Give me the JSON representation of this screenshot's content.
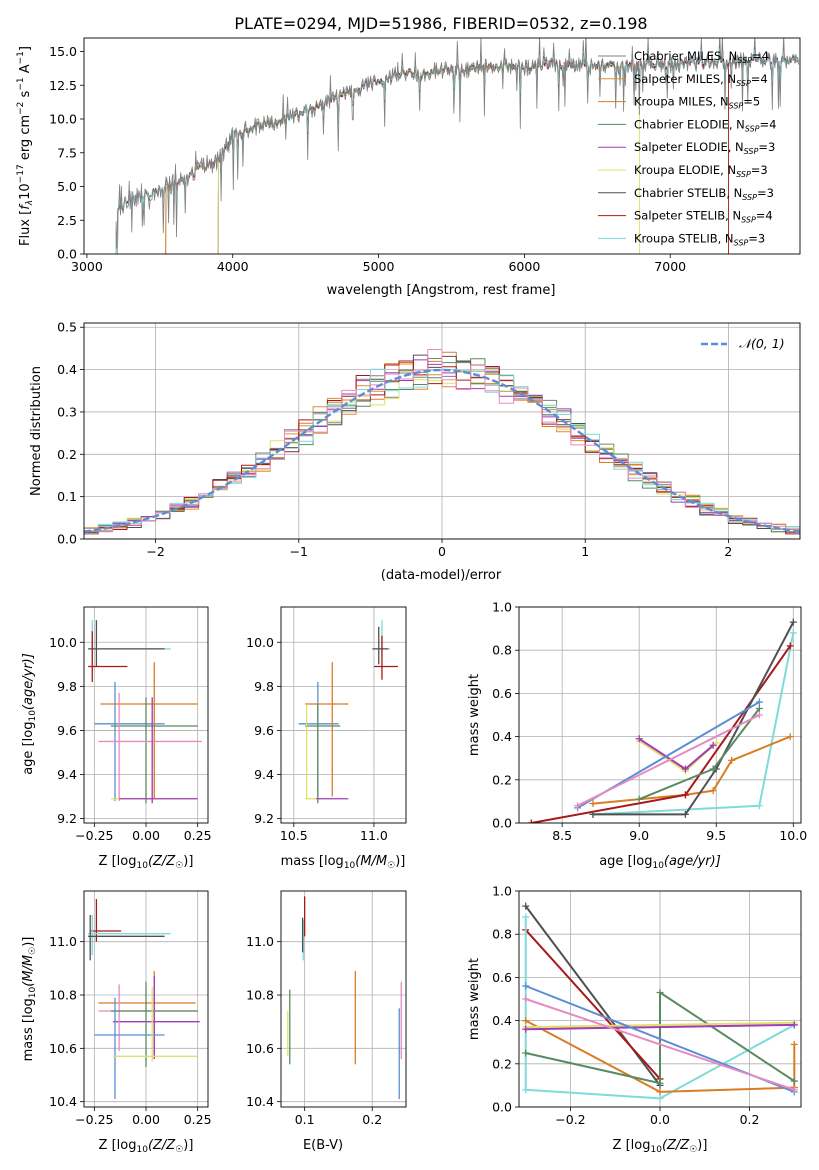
{
  "colors": {
    "Chabrier MILES": "#808080",
    "Salpeter MILES": "#e38b3a",
    "Kroupa MILES": "#d97c26",
    "Chabrier ELODIE": "#5a8a60",
    "Salpeter ELODIE": "#a23bb8",
    "Kroupa ELODIE": "#dfe06a",
    "Chabrier STELIB": "#505050",
    "Salpeter STELIB": "#a81a1a",
    "Kroupa STELIB": "#7fdada",
    "normal": "#5b8ed6",
    "pink": "#e68ac0",
    "grid": "#b0b0b0"
  },
  "chart_data": [
    {
      "id": "spectrum",
      "type": "line",
      "title": "PLATE=0294, MJD=51986, FIBERID=0532, z=0.198",
      "xlabel": "wavelength [Angstrom, rest frame]",
      "ylabel_main": "Flux [",
      "ylabel_f": "f",
      "ylabel_lambda": "λ",
      "ylabel_mid": "10",
      "ylabel_exp1": "−17",
      "ylabel_units": " erg cm",
      "ylabel_exp2": "−2",
      "ylabel_s": " s",
      "ylabel_exp3": "−1",
      "ylabel_A": " A",
      "ylabel_exp4": "−1",
      "ylabel_end": "]",
      "xlim": [
        2980,
        7890
      ],
      "ylim": [
        0,
        16
      ],
      "xticks": [
        3000,
        4000,
        5000,
        6000,
        7000
      ],
      "yticks": [
        "0.0",
        "2.5",
        "5.0",
        "7.5",
        "10.0",
        "12.5",
        "15.0"
      ],
      "ytick_values": [
        0,
        2.5,
        5,
        7.5,
        10,
        12.5,
        15
      ],
      "legend": [
        {
          "name": "Chabrier MILES",
          "nssp": "4"
        },
        {
          "name": "Salpeter MILES",
          "nssp": "4"
        },
        {
          "name": "Kroupa MILES",
          "nssp": "5"
        },
        {
          "name": "Chabrier ELODIE",
          "nssp": "4"
        },
        {
          "name": "Salpeter ELODIE",
          "nssp": "3"
        },
        {
          "name": "Kroupa ELODIE",
          "nssp": "3"
        },
        {
          "name": "Chabrier STELIB",
          "nssp": "3"
        },
        {
          "name": "Salpeter STELIB",
          "nssp": "4"
        },
        {
          "name": "Kroupa STELIB",
          "nssp": "3"
        }
      ],
      "legend_label_sub": "SSP",
      "legend_label_N": "N",
      "continuum_x": [
        3200,
        3300,
        3400,
        3500,
        3600,
        3700,
        3800,
        3900,
        4000,
        4100,
        4200,
        4300,
        4400,
        4500,
        4600,
        4700,
        4800,
        4900,
        5000,
        5100,
        5200,
        5300,
        5400,
        5500,
        5600,
        5700,
        5800,
        5900,
        6000,
        6200,
        6400,
        6600,
        6800,
        7000,
        7200,
        7400,
        7500
      ],
      "continuum_y": [
        3.2,
        4.1,
        4.6,
        4.8,
        5.3,
        5.8,
        6.4,
        6.9,
        8.7,
        9.2,
        9.6,
        9.8,
        10.1,
        10.5,
        11.0,
        11.5,
        11.9,
        12.4,
        12.8,
        13.2,
        13.5,
        13.3,
        13.6,
        13.7,
        13.6,
        13.8,
        13.8,
        13.9,
        13.8,
        14.0,
        13.9,
        13.9,
        14.1,
        14.0,
        14.2,
        14.3,
        14.3
      ],
      "model_starts": [
        {
          "name": "Chabrier MILES",
          "start": 3540
        },
        {
          "name": "Salpeter MILES",
          "start": 3540
        },
        {
          "name": "Kroupa MILES",
          "start": 3540
        },
        {
          "name": "Chabrier ELODIE",
          "start": 3900
        },
        {
          "name": "Salpeter ELODIE",
          "start": 3900
        },
        {
          "name": "Kroupa ELODIE",
          "start": 3900
        },
        {
          "name": "Chabrier STELIB",
          "start": 3210
        },
        {
          "name": "Salpeter STELIB",
          "start": 3210
        },
        {
          "name": "Kroupa STELIB",
          "start": 3210
        }
      ],
      "model_ends": [
        {
          "name": "Kroupa ELODIE",
          "end": 6790
        },
        {
          "name": "Salpeter STELIB",
          "end": 7400
        }
      ]
    },
    {
      "id": "hist",
      "type": "line",
      "xlabel": "(data-model)/error",
      "ylabel": "Normed distribution",
      "xlim": [
        -2.5,
        2.5
      ],
      "ylim": [
        0,
        0.51
      ],
      "xticks": [
        "−2",
        "−1",
        "0",
        "1",
        "2"
      ],
      "xtick_values": [
        -2,
        -1,
        0,
        1,
        2
      ],
      "yticks": [
        "0.0",
        "0.1",
        "0.2",
        "0.3",
        "0.4",
        "0.5"
      ],
      "ytick_values": [
        0,
        0.1,
        0.2,
        0.3,
        0.4,
        0.5
      ],
      "legend_label": "𝒩(0, 1)",
      "bin_edges_start": -2.5,
      "bin_width": 0.1,
      "normal_curve": {
        "mu": 0,
        "sigma": 1
      }
    },
    {
      "id": "age_vs_Z",
      "type": "scatter",
      "xlabel": "Z [log",
      "xlabel_sub": "10",
      "xlabel_rest": "(Z/Z",
      "xlabel_sun": "☉",
      "xlabel_end": ")]",
      "ylabel": "age  [log",
      "ylabel_sub": "10",
      "ylabel_rest": "(age/yr)]",
      "xlim": [
        -0.3,
        0.3
      ],
      "ylim": [
        9.18,
        10.16
      ],
      "xticks": [
        "−0.25",
        "0.00",
        "0.25"
      ],
      "xtick_values": [
        -0.25,
        0,
        0.25
      ],
      "yticks": [
        "9.2",
        "9.4",
        "9.6",
        "9.8",
        "10.0"
      ],
      "ytick_values": [
        9.2,
        9.4,
        9.6,
        9.8,
        10.0
      ]
    },
    {
      "id": "age_vs_mass",
      "type": "scatter",
      "xlabel": "mass [log",
      "xlabel_sub": "10",
      "xlabel_rest": "(M/M",
      "xlabel_sun": "☉",
      "xlabel_end": ")]",
      "xlim": [
        10.42,
        11.2
      ],
      "ylim": [
        9.18,
        10.16
      ],
      "xticks": [
        "10.5",
        "11.0"
      ],
      "xtick_values": [
        10.5,
        11.0
      ],
      "yticks": [
        "9.2",
        "9.4",
        "9.6",
        "9.8",
        "10.0"
      ],
      "ytick_values": [
        9.2,
        9.4,
        9.6,
        9.8,
        10.0
      ]
    },
    {
      "id": "massweight_vs_age",
      "type": "line",
      "xlabel": "age  [log",
      "xlabel_sub": "10",
      "xlabel_rest": "(age/yr)]",
      "ylabel": "mass weight",
      "xlim": [
        8.22,
        10.05
      ],
      "ylim": [
        0,
        1.0
      ],
      "xticks": [
        "8.5",
        "9.0",
        "9.5",
        "10.0"
      ],
      "xtick_values": [
        8.5,
        9.0,
        9.5,
        10.0
      ],
      "yticks": [
        "0.0",
        "0.2",
        "0.4",
        "0.6",
        "0.8",
        "1.0"
      ],
      "ytick_values": [
        0,
        0.2,
        0.4,
        0.6,
        0.8,
        1.0
      ],
      "series": [
        {
          "name": "Kroupa STELIB",
          "x": [
            8.7,
            9.78,
            10.0
          ],
          "y": [
            0.04,
            0.08,
            0.88
          ]
        },
        {
          "name": "Kroupa MILES",
          "x": [
            8.7,
            9.3,
            9.48,
            9.6,
            9.98
          ],
          "y": [
            0.09,
            0.13,
            0.15,
            0.29,
            0.4
          ]
        },
        {
          "name": "Salpeter STELIB",
          "x": [
            8.3,
            9.3,
            9.98
          ],
          "y": [
            0.0,
            0.13,
            0.82
          ]
        },
        {
          "name": "Chabrier STELIB",
          "x": [
            8.7,
            9.3,
            9.5,
            10.0
          ],
          "y": [
            0.04,
            0.04,
            0.25,
            0.93
          ]
        },
        {
          "name": "Chabrier ELODIE",
          "x": [
            9.0,
            9.48,
            9.78
          ],
          "y": [
            0.11,
            0.25,
            0.53
          ]
        },
        {
          "name": "Kroupa ELODIE",
          "x": [
            9.0,
            9.3,
            9.5
          ],
          "y": [
            0.38,
            0.24,
            0.37
          ]
        },
        {
          "name": "Salpeter ELODIE",
          "x": [
            9.0,
            9.3,
            9.48
          ],
          "y": [
            0.39,
            0.25,
            0.36
          ]
        },
        {
          "name": "normal",
          "x": [
            8.6,
            9.78
          ],
          "y": [
            0.07,
            0.56
          ]
        },
        {
          "name": "pink",
          "x": [
            8.6,
            9.78
          ],
          "y": [
            0.08,
            0.5
          ]
        }
      ]
    },
    {
      "id": "mass_vs_Z",
      "type": "scatter",
      "xlabel": "Z [log",
      "xlabel_sub": "10",
      "xlabel_rest": "(Z/Z",
      "xlabel_sun": "☉",
      "xlabel_end": ")]",
      "ylabel": "mass [log",
      "ylabel_sub": "10",
      "ylabel_rest": "(M/M",
      "ylabel_sun": "☉",
      "ylabel_end": ")]",
      "xlim": [
        -0.3,
        0.3
      ],
      "ylim": [
        10.38,
        11.19
      ],
      "xticks": [
        "−0.25",
        "0.00",
        "0.25"
      ],
      "xtick_values": [
        -0.25,
        0,
        0.25
      ],
      "yticks": [
        "10.4",
        "10.6",
        "10.8",
        "11.0"
      ],
      "ytick_values": [
        10.4,
        10.6,
        10.8,
        11.0
      ]
    },
    {
      "id": "mass_vs_ebv",
      "type": "scatter",
      "xlabel": "E(B-V)",
      "xlim": [
        0.065,
        0.25
      ],
      "ylim": [
        10.38,
        11.19
      ],
      "xticks": [
        "0.1",
        "0.2"
      ],
      "xtick_values": [
        0.1,
        0.2
      ],
      "yticks": [
        "10.4",
        "10.6",
        "10.8",
        "11.0"
      ],
      "ytick_values": [
        10.4,
        10.6,
        10.8,
        11.0
      ],
      "points": [
        {
          "name": "Chabrier ELODIE",
          "x": 0.078,
          "y": 10.68,
          "ylo": 10.54,
          "yhi": 10.82
        },
        {
          "name": "Kroupa ELODIE",
          "x": 0.075,
          "y": 10.66,
          "ylo": 10.57,
          "yhi": 10.74
        },
        {
          "name": "Salpeter STELIB",
          "x": 0.1,
          "y": 11.1,
          "ylo": 11.02,
          "yhi": 11.17
        },
        {
          "name": "Kroupa STELIB",
          "x": 0.098,
          "y": 11.0,
          "ylo": 10.93,
          "yhi": 11.08
        },
        {
          "name": "Chabrier STELIB",
          "x": 0.097,
          "y": 11.03,
          "ylo": 10.96,
          "yhi": 11.09
        },
        {
          "name": "Kroupa MILES",
          "x": 0.175,
          "y": 10.72,
          "ylo": 10.54,
          "yhi": 10.89
        },
        {
          "name": "normal",
          "x": 0.24,
          "y": 10.58,
          "ylo": 10.41,
          "yhi": 10.75
        },
        {
          "name": "pink",
          "x": 0.243,
          "y": 10.7,
          "ylo": 10.56,
          "yhi": 10.85
        }
      ]
    },
    {
      "id": "massweight_vs_Z",
      "type": "line",
      "xlabel": "Z [log",
      "xlabel_sub": "10",
      "xlabel_rest": "(Z/Z",
      "xlabel_sun": "☉",
      "xlabel_end": ")]",
      "ylabel": "mass weight",
      "xlim": [
        -0.315,
        0.315
      ],
      "ylim": [
        0,
        1.0
      ],
      "xticks": [
        "−0.2",
        "0.0",
        "0.2"
      ],
      "xtick_values": [
        -0.2,
        0,
        0.2
      ],
      "yticks": [
        "0.0",
        "0.2",
        "0.4",
        "0.6",
        "0.8",
        "1.0"
      ],
      "ytick_values": [
        0,
        0.2,
        0.4,
        0.6,
        0.8,
        1.0
      ],
      "series": [
        {
          "name": "Chabrier STELIB",
          "x": [
            -0.3,
            0.0
          ],
          "y": [
            0.93,
            0.1
          ]
        },
        {
          "name": "Salpeter STELIB",
          "x": [
            -0.3,
            0.0
          ],
          "y": [
            0.82,
            0.13
          ]
        },
        {
          "name": "Kroupa STELIB",
          "x": [
            -0.3,
            -0.3,
            0.0,
            0.3
          ],
          "y": [
            0.88,
            0.08,
            0.04,
            0.38
          ]
        },
        {
          "name": "Kroupa MILES",
          "x": [
            -0.3,
            0.0,
            0.3,
            0.3
          ],
          "y": [
            0.4,
            0.07,
            0.09,
            0.29
          ]
        },
        {
          "name": "Chabrier ELODIE",
          "x": [
            -0.3,
            0.0,
            0.0,
            0.3
          ],
          "y": [
            0.25,
            0.11,
            0.53,
            0.12
          ]
        },
        {
          "name": "Kroupa ELODIE",
          "x": [
            -0.3,
            0.3
          ],
          "y": [
            0.37,
            0.39
          ]
        },
        {
          "name": "Salpeter ELODIE",
          "x": [
            -0.3,
            0.3
          ],
          "y": [
            0.36,
            0.38
          ]
        },
        {
          "name": "normal",
          "x": [
            -0.3,
            0.3
          ],
          "y": [
            0.56,
            0.07
          ]
        },
        {
          "name": "pink",
          "x": [
            -0.3,
            0.3
          ],
          "y": [
            0.5,
            0.08
          ]
        }
      ]
    }
  ]
}
